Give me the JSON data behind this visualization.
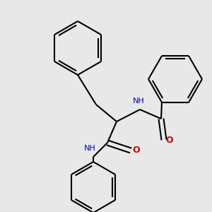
{
  "bg_color": "#e8e8e8",
  "bond_color": "#000000",
  "N_color": "#0000cc",
  "O_color": "#cc0000",
  "H_color": "#008080",
  "line_width": 1.5,
  "figsize": [
    3.0,
    3.0
  ],
  "dpi": 100,
  "xlim": [
    0,
    300
  ],
  "ylim": [
    0,
    300
  ]
}
